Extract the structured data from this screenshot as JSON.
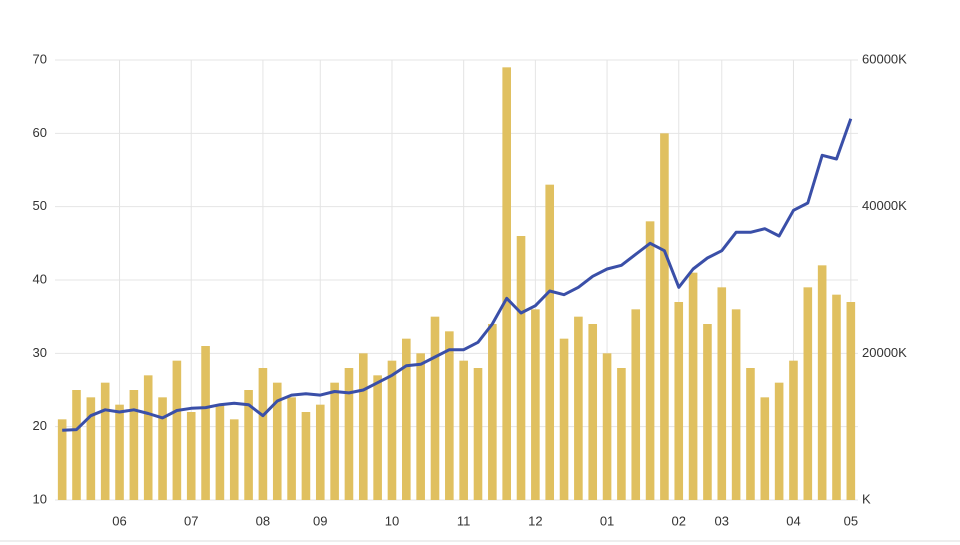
{
  "chart_data": {
    "type": "price-volume",
    "categories": [
      null,
      null,
      null,
      null,
      "06",
      null,
      null,
      null,
      null,
      "07",
      null,
      null,
      null,
      null,
      "08",
      null,
      null,
      null,
      "09",
      null,
      null,
      null,
      null,
      "10",
      null,
      null,
      null,
      null,
      "11",
      null,
      null,
      null,
      null,
      "12",
      null,
      null,
      null,
      null,
      "01",
      null,
      null,
      null,
      null,
      "02",
      null,
      null,
      "03",
      null,
      null,
      null,
      null,
      "04",
      null,
      null,
      null,
      "05"
    ],
    "series": [
      {
        "type": "line",
        "color": "#3a4fa8",
        "values": [
          19.5,
          19.6,
          21.5,
          22.3,
          22.0,
          22.3,
          21.8,
          21.2,
          22.2,
          22.5,
          22.6,
          23.0,
          23.2,
          23.0,
          21.5,
          23.5,
          24.3,
          24.5,
          24.3,
          24.8,
          24.6,
          25.0,
          26.0,
          27.0,
          28.3,
          28.5,
          29.5,
          30.5,
          30.5,
          31.5,
          34.0,
          37.5,
          35.5,
          36.5,
          38.5,
          38.0,
          39.0,
          40.5,
          41.5,
          42.0,
          43.5,
          45.0,
          44.0,
          39.0,
          41.5,
          43.0,
          44.0,
          46.5,
          46.5,
          47.0,
          46.0,
          49.5,
          50.5,
          57.0,
          56.5,
          62.0
        ]
      },
      {
        "type": "bar",
        "axis": "y2",
        "color": "#e0c060",
        "values": [
          11000,
          15000,
          14000,
          16000,
          13000,
          15000,
          17000,
          14000,
          19000,
          12000,
          21000,
          13000,
          11000,
          15000,
          18000,
          16000,
          14000,
          12000,
          13000,
          16000,
          18000,
          20000,
          17000,
          19000,
          22000,
          20000,
          25000,
          23000,
          19000,
          18000,
          24000,
          59000,
          36000,
          26000,
          43000,
          22000,
          25000,
          24000,
          20000,
          18000,
          26000,
          38000,
          50000,
          27000,
          31000,
          24000,
          29000,
          26000,
          18000,
          14000,
          16000,
          19000,
          29000,
          32000,
          28000,
          27000
        ]
      }
    ],
    "ylim": [
      10,
      70
    ],
    "yticks": [
      10,
      20,
      30,
      40,
      50,
      60,
      70
    ],
    "y2lim": [
      0,
      60000
    ],
    "y2ticks": [
      {
        "value": 0,
        "label": "K"
      },
      {
        "value": 20000,
        "label": "20000K"
      },
      {
        "value": 40000,
        "label": "40000K"
      },
      {
        "value": 60000,
        "label": "60000K"
      }
    ],
    "grid": true
  }
}
